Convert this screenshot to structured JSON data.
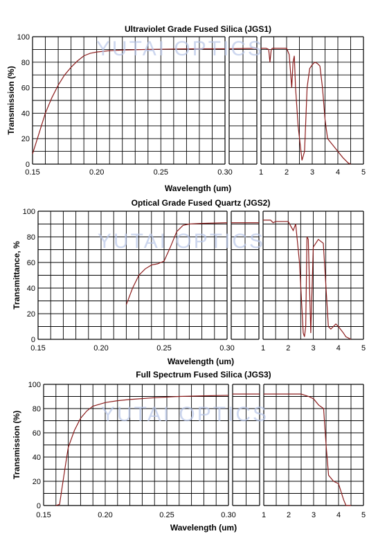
{
  "watermark": {
    "text": "YUTAI OPTICS",
    "color": "#b8c6e8"
  },
  "colors": {
    "curve": "#8b1a1a",
    "grid": "#000000",
    "background": "#ffffff"
  },
  "chart_data": [
    {
      "type": "line",
      "title": "Ultraviolet Grade Fused Silica (JGS1)",
      "xlabel": "Wavelength (um)",
      "ylabel": "Transmission (%)",
      "ylim": [
        0,
        100
      ],
      "yticks": [
        "0",
        "20",
        "40",
        "60",
        "80",
        "100"
      ],
      "grid": true,
      "panels": [
        {
          "xlim": [
            0.15,
            0.3
          ],
          "xticks": [
            "0.15",
            "0.20",
            "0.25",
            "0.30"
          ],
          "x": [
            0.15,
            0.155,
            0.16,
            0.165,
            0.17,
            0.175,
            0.18,
            0.185,
            0.19,
            0.195,
            0.2,
            0.21,
            0.22,
            0.24,
            0.26,
            0.28,
            0.3
          ],
          "y": [
            8,
            24,
            40,
            52,
            62,
            70,
            76,
            81,
            85,
            87,
            88,
            89,
            89.5,
            90,
            90.3,
            90.5,
            90.5
          ]
        },
        {
          "xlim": [
            0.3,
            1.0
          ],
          "xticks": [],
          "x": [
            0.3,
            1.0
          ],
          "y": [
            90.5,
            91
          ]
        },
        {
          "xlim": [
            1,
            5
          ],
          "xticks": [
            "1",
            "2",
            "3",
            "4",
            "5"
          ],
          "x": [
            1,
            1.2,
            1.3,
            1.35,
            1.4,
            1.45,
            1.6,
            2.0,
            2.1,
            2.2,
            2.25,
            2.3,
            2.35,
            2.45,
            2.6,
            2.7,
            2.8,
            2.9,
            3.0,
            3.1,
            3.2,
            3.3,
            3.4,
            3.5,
            3.6,
            3.8,
            4.0,
            4.2,
            4.4,
            4.5
          ],
          "y": [
            91,
            91,
            90,
            80,
            90,
            91,
            91,
            91,
            86,
            60,
            80,
            85,
            60,
            30,
            3,
            10,
            60,
            75,
            78,
            80,
            79,
            77,
            60,
            35,
            20,
            15,
            10,
            5,
            1,
            0
          ]
        }
      ]
    },
    {
      "type": "line",
      "title": "Optical Grade Fused Quartz  (JGS2)",
      "xlabel": "Wavelength (um)",
      "ylabel": "Transmittance, %",
      "ylim": [
        0,
        100
      ],
      "yticks": [
        "0",
        "20",
        "40",
        "60",
        "80",
        "100"
      ],
      "grid": true,
      "panels": [
        {
          "xlim": [
            0.15,
            0.3
          ],
          "xticks": [
            "0.15",
            "0.20",
            "0.25",
            "0.30"
          ],
          "x": [
            0.22,
            0.225,
            0.23,
            0.235,
            0.24,
            0.245,
            0.25,
            0.255,
            0.26,
            0.265,
            0.27,
            0.28,
            0.3
          ],
          "y": [
            27,
            40,
            50,
            55,
            58,
            59,
            61,
            72,
            84,
            89,
            90,
            90.5,
            91
          ]
        },
        {
          "xlim": [
            0.3,
            1.0
          ],
          "xticks": [],
          "x": [
            0.3,
            1.0
          ],
          "y": [
            91,
            91
          ]
        },
        {
          "xlim": [
            1,
            5
          ],
          "xticks": [
            "1",
            "2",
            "3",
            "4",
            "5"
          ],
          "x": [
            1,
            1.3,
            1.4,
            1.5,
            2.0,
            2.2,
            2.3,
            2.45,
            2.6,
            2.65,
            2.7,
            2.75,
            2.8,
            2.9,
            3.0,
            3.2,
            3.4,
            3.6,
            3.7,
            3.9,
            4.0,
            4.2,
            4.3,
            4.4,
            4.5
          ],
          "y": [
            93,
            93,
            91,
            92,
            92,
            85,
            90,
            60,
            5,
            2,
            10,
            80,
            78,
            5,
            72,
            78,
            75,
            10,
            8,
            12,
            10,
            5,
            2,
            1,
            0
          ]
        }
      ]
    },
    {
      "type": "line",
      "title": "Full Spectrum Fused Silica (JGS3)",
      "xlabel": "Wavelength (um)",
      "ylabel": "Transmission (%)",
      "ylim": [
        0,
        100
      ],
      "yticks": [
        "0",
        "20",
        "40",
        "60",
        "80",
        "100"
      ],
      "grid": true,
      "panels": [
        {
          "xlim": [
            0.15,
            0.3
          ],
          "xticks": [
            "0.15",
            "0.20",
            "0.25",
            "0.30"
          ],
          "x": [
            0.16,
            0.163,
            0.165,
            0.168,
            0.17,
            0.175,
            0.18,
            0.185,
            0.19,
            0.2,
            0.21,
            0.22,
            0.24,
            0.26,
            0.28,
            0.3
          ],
          "y": [
            0,
            1,
            15,
            35,
            48,
            62,
            72,
            78,
            82,
            85,
            86.5,
            87.5,
            89,
            90,
            90.5,
            91
          ]
        },
        {
          "xlim": [
            0.3,
            1.0
          ],
          "xticks": [],
          "x": [
            0.3,
            1.0
          ],
          "y": [
            92,
            92
          ]
        },
        {
          "xlim": [
            1,
            5
          ],
          "xticks": [
            "1",
            "2",
            "3",
            "4",
            "5"
          ],
          "x": [
            1,
            1.5,
            2.0,
            2.5,
            2.8,
            3.0,
            3.2,
            3.4,
            3.5,
            3.6,
            3.8,
            4.0,
            4.2,
            4.3,
            4.5
          ],
          "y": [
            92,
            92,
            92,
            92,
            90,
            88,
            83,
            80,
            50,
            25,
            20,
            18,
            5,
            0,
            0
          ]
        }
      ]
    }
  ]
}
